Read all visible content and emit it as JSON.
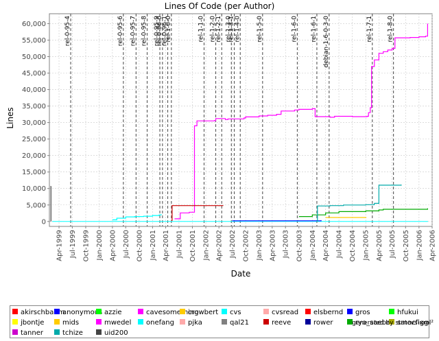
{
  "chart_data": {
    "type": "line",
    "title": "Lines Of Code (per Author)",
    "xlabel": "Date",
    "ylabel": "Lines",
    "y_axis": {
      "min": -1500,
      "max": 63000,
      "ticks": [
        0,
        5000,
        10000,
        15000,
        20000,
        25000,
        30000,
        35000,
        40000,
        45000,
        50000,
        55000,
        60000
      ],
      "tick_labels": [
        "0",
        "5,000",
        "10,000",
        "15,000",
        "20,000",
        "25,000",
        "30,000",
        "35,000",
        "40,000",
        "45,000",
        "50,000",
        "55,000",
        "60,000"
      ]
    },
    "x_axis": {
      "min": "1999-01-25",
      "max": "2006-04-01",
      "ticks": [
        "1999-04-01",
        "1999-07-01",
        "1999-10-01",
        "2000-01-01",
        "2000-04-01",
        "2000-07-01",
        "2000-10-01",
        "2001-01-01",
        "2001-04-01",
        "2001-07-01",
        "2001-10-01",
        "2002-01-01",
        "2002-04-01",
        "2002-07-01",
        "2002-10-01",
        "2003-01-01",
        "2003-04-01",
        "2003-07-01",
        "2003-10-01",
        "2004-01-01",
        "2004-04-01",
        "2004-07-01",
        "2004-10-01",
        "2005-01-01",
        "2005-04-01",
        "2005-07-01",
        "2005-10-01",
        "2006-01-01",
        "2006-04-01"
      ],
      "tick_labels": [
        "Apr-1999",
        "Jul-1999",
        "Oct-1999",
        "Jan-2000",
        "Apr-2000",
        "Jul-2000",
        "Oct-2000",
        "Jan-2001",
        "Apr-2001",
        "Jul-2001",
        "Oct-2001",
        "Jan-2002",
        "Apr-2002",
        "Jul-2002",
        "Oct-2002",
        "Jan-2003",
        "Apr-2003",
        "Jul-2003",
        "Oct-2003",
        "Jan-2004",
        "Apr-2004",
        "Jul-2004",
        "Oct-2004",
        "Jan-2005",
        "Apr-2005",
        "Jul-2005",
        "Oct-2005",
        "Jan-2006",
        "Apr-2006"
      ]
    },
    "grid": true,
    "markers": [
      {
        "label": "rel-0-95-4",
        "date": "1999-06-20"
      },
      {
        "label": "rel-0-95-6",
        "date": "2000-06-15"
      },
      {
        "label": "rel-0-95-7",
        "date": "2000-09-10"
      },
      {
        "label": "rel-0-95-8",
        "date": "2000-11-25"
      },
      {
        "label": "rel-0-95-9",
        "date": "2001-02-20"
      },
      {
        "label": "rel-0-96-0",
        "date": "2001-03-10"
      },
      {
        "label": "rel-0-96-1",
        "date": "2001-04-15"
      },
      {
        "label": "rel-1-0-0",
        "date": "2001-05-10"
      },
      {
        "label": "rel-1-1-0",
        "date": "2001-12-20"
      },
      {
        "label": "rel-1-2-0",
        "date": "2002-03-10"
      },
      {
        "label": "rel-1-2-1",
        "date": "2002-04-20"
      },
      {
        "label": "rel-1-3-0",
        "date": "2002-06-25"
      },
      {
        "label": "rel-1-3-1",
        "date": "2002-07-15"
      },
      {
        "label": "rel-1-4-0",
        "date": "2002-08-25"
      },
      {
        "label": "rel-1-5-0",
        "date": "2003-01-25"
      },
      {
        "label": "rel-1-6-0",
        "date": "2003-09-20"
      },
      {
        "label": "rel-1-6-1",
        "date": "2004-02-01"
      },
      {
        "label": "debian-1-6-0-3-0",
        "date": "2004-04-25"
      },
      {
        "label": "rel-1-7-1",
        "date": "2005-02-15"
      },
      {
        "label": "rel-1-8-0",
        "date": "2005-07-10"
      }
    ],
    "series": [
      {
        "name": "akirschbaum",
        "color": "#ff0000",
        "points": []
      },
      {
        "name": "anonymous",
        "color": "#0000ff",
        "points": []
      },
      {
        "name": "azzie",
        "color": "#00ff00",
        "points": []
      },
      {
        "name": "cavesomething",
        "color": "#ff00ff",
        "points": [
          [
            "2001-06-01",
            800
          ],
          [
            "2001-07-10",
            2600
          ],
          [
            "2001-09-10",
            2800
          ],
          [
            "2001-10-15",
            29000
          ],
          [
            "2001-11-01",
            30500
          ],
          [
            "2002-03-01",
            30600
          ],
          [
            "2002-03-10",
            31200
          ],
          [
            "2002-05-15",
            30900
          ],
          [
            "2002-06-01",
            31100
          ],
          [
            "2002-09-20",
            31400
          ],
          [
            "2002-10-01",
            31700
          ],
          [
            "2003-01-01",
            32000
          ],
          [
            "2003-03-01",
            32200
          ],
          [
            "2003-05-01",
            32500
          ],
          [
            "2003-06-01",
            33500
          ],
          [
            "2003-09-01",
            33800
          ],
          [
            "2003-10-01",
            34000
          ],
          [
            "2004-01-01",
            34200
          ],
          [
            "2004-01-20",
            31800
          ],
          [
            "2004-05-01",
            31600
          ],
          [
            "2004-06-01",
            31900
          ],
          [
            "2004-10-01",
            31800
          ],
          [
            "2005-01-10",
            31900
          ],
          [
            "2005-01-20",
            33000
          ],
          [
            "2005-02-01",
            34500
          ],
          [
            "2005-02-10",
            47000
          ],
          [
            "2005-03-01",
            49000
          ],
          [
            "2005-04-01",
            51000
          ],
          [
            "2005-05-01",
            51500
          ],
          [
            "2005-06-01",
            52000
          ],
          [
            "2005-07-01",
            52500
          ],
          [
            "2005-07-20",
            55700
          ],
          [
            "2005-11-01",
            55800
          ],
          [
            "2006-01-01",
            56000
          ],
          [
            "2006-02-15",
            56200
          ],
          [
            "2006-03-01",
            60000
          ]
        ]
      },
      {
        "name": "crowbert",
        "color": "#ffcc00",
        "points": [
          [
            "2004-04-01",
            1200
          ],
          [
            "2005-01-05",
            1200
          ]
        ]
      },
      {
        "name": "cvs",
        "color": "#00ffff",
        "points": [
          [
            "2000-04-01",
            500
          ],
          [
            "2000-05-01",
            1000
          ],
          [
            "2000-07-01",
            1400
          ],
          [
            "2000-09-01",
            1500
          ],
          [
            "2000-11-01",
            1600
          ],
          [
            "2001-01-01",
            1800
          ],
          [
            "2001-02-15",
            2000
          ],
          [
            "2001-03-01",
            2200
          ]
        ]
      },
      {
        "name": "cvsread",
        "color": "#ffaaaa",
        "points": []
      },
      {
        "name": "elsbernd",
        "color": "#ff0000",
        "points": []
      },
      {
        "name": "gros",
        "color": "#0000ff",
        "points": [
          [
            "2002-07-01",
            200
          ],
          [
            "2004-03-01",
            400
          ]
        ]
      },
      {
        "name": "hfukui",
        "color": "#00ff00",
        "points": []
      },
      {
        "name": "jbontje",
        "color": "#ffff00",
        "points": []
      },
      {
        "name": "mids",
        "color": "#ffcc00",
        "points": []
      },
      {
        "name": "mwedel",
        "color": "#ff00ff",
        "points": []
      },
      {
        "name": "onefang",
        "color": "#00ffff",
        "points": []
      },
      {
        "name": "pjka",
        "color": "#ffaaaa",
        "points": []
      },
      {
        "name": "qal21",
        "color": "#808080",
        "points": []
      },
      {
        "name": "reeve",
        "color": "#cc0000",
        "points": [
          [
            "2001-05-10",
            300
          ],
          [
            "2001-05-15",
            4800
          ],
          [
            "2002-05-01",
            4800
          ]
        ]
      },
      {
        "name": "rower",
        "color": "#000099",
        "points": []
      },
      {
        "name": "ryo_saeba",
        "color": "#00aa00",
        "points": [
          [
            "2003-10-01",
            1500
          ],
          [
            "2004-01-01",
            2000
          ],
          [
            "2004-04-01",
            2600
          ],
          [
            "2004-07-01",
            3000
          ],
          [
            "2005-01-01",
            3200
          ],
          [
            "2005-04-01",
            3500
          ],
          [
            "2005-05-01",
            3700
          ],
          [
            "2006-03-01",
            4000
          ]
        ]
      },
      {
        "name": "smacfiggen",
        "color": "#aaaa00",
        "points": []
      },
      {
        "name": "tanner",
        "color": "#cc00cc",
        "points": []
      },
      {
        "name": "tchize",
        "color": "#00aaaa",
        "points": [
          [
            "2004-02-01",
            100
          ],
          [
            "2004-02-05",
            4700
          ],
          [
            "2004-05-01",
            4800
          ],
          [
            "2004-08-01",
            5000
          ],
          [
            "2005-01-01",
            5100
          ],
          [
            "2005-03-01",
            5500
          ],
          [
            "2005-04-01",
            11000
          ],
          [
            "2005-09-01",
            11200
          ]
        ]
      },
      {
        "name": "uid200",
        "color": "#444444",
        "points": [
          [
            "1999-02-01",
            10600
          ],
          [
            "1999-02-05",
            0
          ]
        ]
      }
    ],
    "legend_placement": "bottom",
    "legend_columns": 10
  },
  "footer": {
    "text": "generated by statcvs-xml²"
  }
}
